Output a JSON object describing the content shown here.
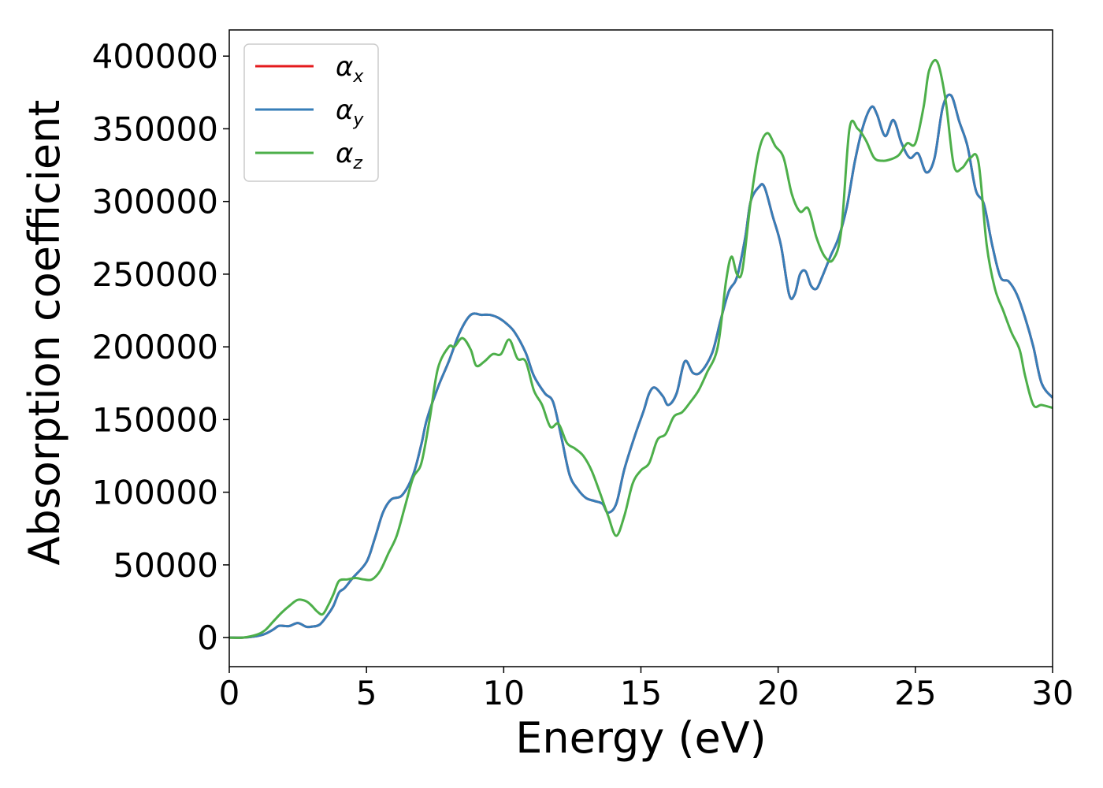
{
  "chart_data": {
    "type": "line",
    "xlabel": "Energy (eV)",
    "ylabel": "Absorption coefficient",
    "xlim": [
      0,
      30
    ],
    "ylim": [
      -20000,
      418000
    ],
    "xticks": [
      0,
      5,
      10,
      15,
      20,
      25,
      30
    ],
    "yticks": [
      0,
      50000,
      100000,
      150000,
      200000,
      250000,
      300000,
      350000,
      400000
    ],
    "grid": false,
    "legend_position": "top-left",
    "series": [
      {
        "name": "α",
        "subscript": "x",
        "color": "#e41a1c",
        "x": [
          0,
          0.5,
          1.0,
          1.3,
          1.6,
          1.8,
          2.0,
          2.2,
          2.5,
          2.8,
          3.0,
          3.3,
          3.6,
          3.8,
          4.0,
          4.2,
          4.5,
          5.0,
          5.3,
          5.6,
          5.9,
          6.3,
          6.7,
          7.0,
          7.2,
          7.6,
          8.0,
          8.4,
          8.8,
          9.2,
          9.5,
          9.8,
          10.1,
          10.4,
          10.8,
          11.1,
          11.5,
          11.8,
          12.1,
          12.4,
          12.7,
          13.0,
          13.3,
          13.6,
          13.8,
          14.1,
          14.4,
          14.8,
          15.1,
          15.3,
          15.5,
          15.8,
          16.0,
          16.3,
          16.6,
          16.9,
          17.2,
          17.6,
          17.9,
          18.2,
          18.5,
          18.8,
          19.0,
          19.3,
          19.5,
          19.8,
          20.1,
          20.4,
          20.6,
          20.8,
          21.0,
          21.2,
          21.4,
          21.6,
          21.9,
          22.2,
          22.5,
          22.8,
          23.1,
          23.4,
          23.6,
          23.9,
          24.2,
          24.5,
          24.8,
          25.1,
          25.4,
          25.7,
          26.0,
          26.3,
          26.6,
          26.9,
          27.2,
          27.5,
          27.8,
          28.1,
          28.4,
          28.7,
          29.0,
          29.3,
          29.6,
          30.0
        ],
        "y": [
          0,
          0,
          1000,
          2500,
          5500,
          8000,
          8000,
          8000,
          10000,
          7500,
          7500,
          9000,
          16000,
          22000,
          31000,
          34000,
          41000,
          52000,
          68000,
          86000,
          95000,
          98000,
          112000,
          133000,
          150000,
          172000,
          190000,
          210000,
          222000,
          222000,
          222000,
          220000,
          216000,
          210000,
          196000,
          180000,
          168000,
          162000,
          138000,
          112000,
          102000,
          96000,
          94000,
          92000,
          86000,
          92000,
          116000,
          140000,
          156000,
          168000,
          172000,
          166000,
          160000,
          168000,
          190000,
          182000,
          183000,
          196000,
          218000,
          238000,
          248000,
          275000,
          300000,
          310000,
          310000,
          290000,
          270000,
          236000,
          236000,
          250000,
          252000,
          242000,
          240000,
          248000,
          262000,
          275000,
          296000,
          328000,
          352000,
          365000,
          360000,
          345000,
          356000,
          340000,
          330000,
          333000,
          320000,
          330000,
          365000,
          373000,
          355000,
          338000,
          308000,
          298000,
          270000,
          248000,
          245000,
          236000,
          220000,
          200000,
          175000,
          165000
        ]
      },
      {
        "name": "α",
        "subscript": "y",
        "color": "#377eb8",
        "x": [
          0,
          0.5,
          1.0,
          1.3,
          1.6,
          1.8,
          2.0,
          2.2,
          2.5,
          2.8,
          3.0,
          3.3,
          3.6,
          3.8,
          4.0,
          4.2,
          4.5,
          5.0,
          5.3,
          5.6,
          5.9,
          6.3,
          6.7,
          7.0,
          7.2,
          7.6,
          8.0,
          8.4,
          8.8,
          9.2,
          9.5,
          9.8,
          10.1,
          10.4,
          10.8,
          11.1,
          11.5,
          11.8,
          12.1,
          12.4,
          12.7,
          13.0,
          13.3,
          13.6,
          13.8,
          14.1,
          14.4,
          14.8,
          15.1,
          15.3,
          15.5,
          15.8,
          16.0,
          16.3,
          16.6,
          16.9,
          17.2,
          17.6,
          17.9,
          18.2,
          18.5,
          18.8,
          19.0,
          19.3,
          19.5,
          19.8,
          20.1,
          20.4,
          20.6,
          20.8,
          21.0,
          21.2,
          21.4,
          21.6,
          21.9,
          22.2,
          22.5,
          22.8,
          23.1,
          23.4,
          23.6,
          23.9,
          24.2,
          24.5,
          24.8,
          25.1,
          25.4,
          25.7,
          26.0,
          26.3,
          26.6,
          26.9,
          27.2,
          27.5,
          27.8,
          28.1,
          28.4,
          28.7,
          29.0,
          29.3,
          29.6,
          30.0
        ],
        "y": [
          0,
          0,
          1000,
          2500,
          5500,
          8000,
          8000,
          8000,
          10000,
          7500,
          7500,
          9000,
          16000,
          22000,
          31000,
          34000,
          41000,
          52000,
          68000,
          86000,
          95000,
          98000,
          112000,
          133000,
          150000,
          172000,
          190000,
          210000,
          222000,
          222000,
          222000,
          220000,
          216000,
          210000,
          196000,
          180000,
          168000,
          162000,
          138000,
          112000,
          102000,
          96000,
          94000,
          92000,
          86000,
          92000,
          116000,
          140000,
          156000,
          168000,
          172000,
          166000,
          160000,
          168000,
          190000,
          182000,
          183000,
          196000,
          218000,
          238000,
          248000,
          275000,
          300000,
          310000,
          310000,
          290000,
          270000,
          236000,
          236000,
          250000,
          252000,
          242000,
          240000,
          248000,
          262000,
          275000,
          296000,
          328000,
          352000,
          365000,
          360000,
          345000,
          356000,
          340000,
          330000,
          333000,
          320000,
          330000,
          365000,
          373000,
          355000,
          338000,
          308000,
          298000,
          270000,
          248000,
          245000,
          236000,
          220000,
          200000,
          175000,
          165000
        ]
      },
      {
        "name": "α",
        "subscript": "z",
        "color": "#4daf4a",
        "x": [
          0,
          0.5,
          1.0,
          1.3,
          1.6,
          1.9,
          2.2,
          2.5,
          2.8,
          3.0,
          3.2,
          3.4,
          3.6,
          3.8,
          4.0,
          4.3,
          4.6,
          4.9,
          5.2,
          5.5,
          5.8,
          6.1,
          6.4,
          6.7,
          7.0,
          7.3,
          7.6,
          8.0,
          8.2,
          8.5,
          8.8,
          9.0,
          9.3,
          9.6,
          9.9,
          10.2,
          10.5,
          10.8,
          11.1,
          11.4,
          11.7,
          12.0,
          12.3,
          12.6,
          12.9,
          13.2,
          13.5,
          13.8,
          14.1,
          14.4,
          14.7,
          15.0,
          15.3,
          15.6,
          15.9,
          16.2,
          16.5,
          16.8,
          17.1,
          17.4,
          17.8,
          18.1,
          18.3,
          18.5,
          18.7,
          19.0,
          19.3,
          19.6,
          19.9,
          20.2,
          20.5,
          20.8,
          21.1,
          21.4,
          21.7,
          22.0,
          22.3,
          22.6,
          22.9,
          23.2,
          23.5,
          23.8,
          24.1,
          24.4,
          24.7,
          25.0,
          25.3,
          25.5,
          25.8,
          26.1,
          26.4,
          26.7,
          27.0,
          27.3,
          27.6,
          27.9,
          28.2,
          28.5,
          28.8,
          29.0,
          29.3,
          29.6,
          30.0
        ],
        "y": [
          0,
          0,
          2000,
          5000,
          11000,
          17000,
          22000,
          26000,
          25000,
          22000,
          18000,
          16000,
          22000,
          30000,
          39000,
          40000,
          41000,
          40000,
          40000,
          46000,
          58000,
          70000,
          90000,
          110000,
          120000,
          150000,
          185000,
          200000,
          200000,
          206000,
          198000,
          187000,
          190000,
          195000,
          195000,
          205000,
          192000,
          190000,
          170000,
          160000,
          145000,
          147000,
          134000,
          130000,
          125000,
          115000,
          100000,
          84000,
          70000,
          84000,
          106000,
          115000,
          120000,
          136000,
          140000,
          152000,
          155000,
          162000,
          170000,
          182000,
          200000,
          245000,
          262000,
          250000,
          253000,
          300000,
          335000,
          347000,
          338000,
          330000,
          305000,
          293000,
          295000,
          275000,
          262000,
          260000,
          280000,
          350000,
          350000,
          342000,
          330000,
          328000,
          329000,
          332000,
          340000,
          340000,
          365000,
          390000,
          396000,
          370000,
          325000,
          323000,
          330000,
          327000,
          270000,
          240000,
          225000,
          210000,
          198000,
          180000,
          160000,
          160000,
          158000
        ]
      }
    ]
  }
}
